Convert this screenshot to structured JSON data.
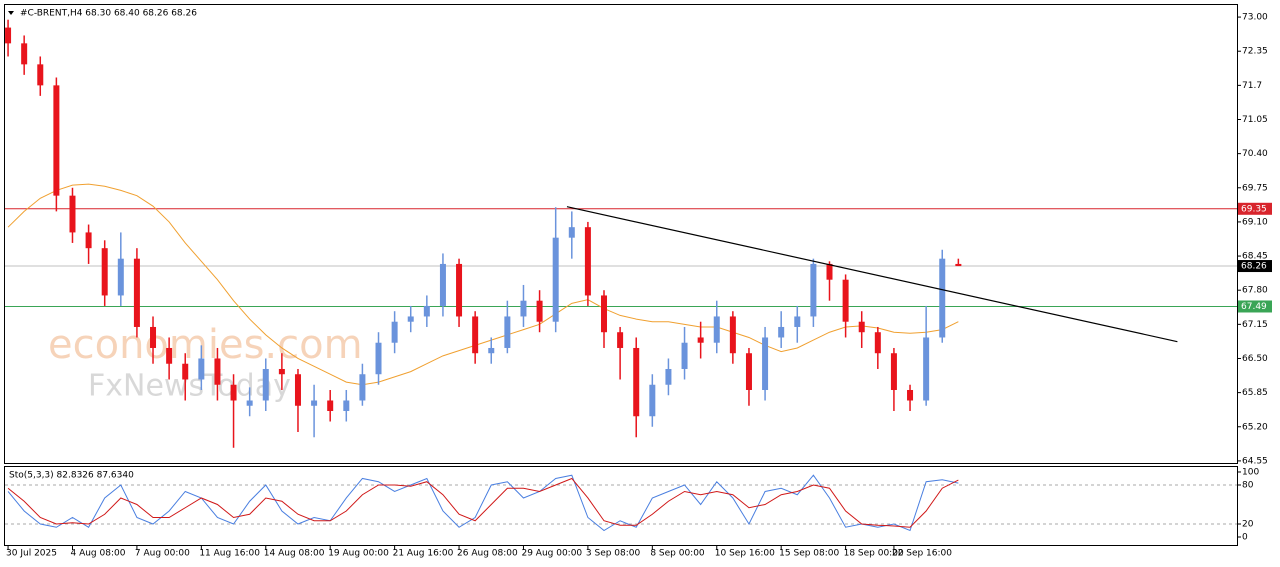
{
  "chart_data": [
    {
      "type": "candlestick",
      "title": "#C-BRENT,H4  68.30 68.40 68.26 68.26",
      "watermark": [
        "economies.com",
        "FxNewsToday"
      ],
      "categories": [
        "30 Jul 2025",
        null,
        null,
        null,
        "4 Aug 08:00",
        null,
        null,
        null,
        "7 Aug 00:00",
        null,
        null,
        null,
        "11 Aug 16:00",
        null,
        null,
        null,
        "14 Aug 08:00",
        null,
        null,
        null,
        "19 Aug 00:00",
        null,
        null,
        null,
        "21 Aug 16:00",
        null,
        null,
        null,
        "26 Aug 08:00",
        null,
        null,
        null,
        "29 Aug 00:00",
        null,
        null,
        null,
        "3 Sep 08:00",
        null,
        null,
        null,
        "8 Sep 00:00",
        null,
        null,
        null,
        "10 Sep 16:00",
        null,
        null,
        null,
        "15 Sep 08:00",
        null,
        null,
        null,
        "18 Sep 00:00",
        null,
        null,
        "22 Sep 16:00",
        null,
        null,
        null,
        null
      ],
      "xlim": [
        -0.19,
        76.3
      ],
      "open": [
        72.8,
        72.5,
        72.1,
        71.7,
        69.6,
        68.9,
        68.6,
        67.7,
        68.4,
        67.1,
        66.7,
        66.4,
        66.1,
        66.5,
        66.0,
        65.6,
        65.7,
        66.3,
        66.2,
        65.6,
        65.7,
        65.5,
        65.7,
        66.2,
        66.8,
        67.2,
        67.3,
        67.5,
        68.3,
        67.3,
        66.6,
        66.7,
        67.3,
        67.6,
        67.2,
        68.8,
        69.0,
        67.7,
        67.0,
        66.7,
        65.4,
        66.0,
        66.3,
        66.9,
        66.8,
        67.3,
        66.6,
        65.9,
        66.9,
        67.1,
        67.3,
        68.3,
        68.0,
        67.2,
        67.0,
        66.6,
        65.9,
        65.7,
        66.9,
        68.3
      ],
      "high": [
        72.95,
        72.65,
        72.25,
        71.85,
        69.75,
        69.05,
        68.75,
        68.9,
        68.6,
        67.3,
        66.9,
        66.6,
        66.75,
        66.7,
        66.2,
        65.95,
        66.5,
        66.6,
        66.3,
        66.0,
        65.9,
        65.9,
        66.4,
        67.0,
        67.4,
        67.5,
        67.7,
        68.5,
        68.4,
        67.4,
        66.9,
        67.6,
        67.9,
        67.8,
        69.38,
        69.3,
        69.1,
        67.8,
        67.1,
        66.9,
        66.2,
        66.5,
        67.1,
        67.2,
        67.6,
        67.4,
        66.7,
        67.1,
        67.4,
        67.5,
        68.4,
        68.35,
        68.1,
        67.4,
        67.1,
        66.7,
        66.0,
        67.5,
        68.57,
        68.4
      ],
      "low": [
        72.25,
        71.9,
        71.5,
        69.3,
        68.7,
        68.3,
        67.5,
        67.5,
        66.9,
        66.4,
        66.1,
        65.7,
        65.9,
        65.7,
        64.8,
        65.4,
        65.5,
        65.9,
        65.1,
        65.0,
        65.3,
        65.3,
        65.6,
        66.0,
        66.6,
        67.0,
        67.1,
        67.3,
        67.1,
        66.4,
        66.4,
        66.6,
        67.1,
        67.0,
        67.0,
        68.4,
        67.5,
        66.7,
        66.1,
        65.0,
        65.2,
        65.8,
        66.1,
        66.5,
        66.6,
        66.4,
        65.6,
        65.7,
        66.7,
        66.8,
        67.1,
        67.6,
        66.9,
        66.7,
        66.3,
        65.5,
        65.5,
        65.6,
        66.8,
        68.26
      ],
      "close": [
        72.5,
        72.1,
        71.7,
        69.6,
        68.9,
        68.6,
        67.7,
        68.4,
        67.1,
        66.7,
        66.4,
        66.1,
        66.5,
        66.0,
        65.7,
        65.7,
        66.3,
        66.2,
        65.6,
        65.7,
        65.5,
        65.7,
        66.2,
        66.8,
        67.2,
        67.3,
        67.5,
        68.3,
        67.3,
        66.6,
        66.7,
        67.3,
        67.6,
        67.2,
        68.8,
        69.0,
        67.7,
        67.0,
        66.7,
        65.4,
        66.0,
        66.3,
        66.8,
        66.8,
        67.3,
        66.6,
        65.9,
        66.9,
        67.1,
        67.3,
        68.3,
        68.0,
        67.2,
        67.0,
        66.6,
        65.9,
        65.7,
        66.9,
        68.4,
        68.26
      ],
      "up_color": "#6a93dc",
      "down_color": "#e8141c",
      "moving_average": {
        "color": "#f0a030",
        "values": [
          69.0,
          69.3,
          69.55,
          69.7,
          69.8,
          69.82,
          69.78,
          69.7,
          69.6,
          69.4,
          69.1,
          68.7,
          68.35,
          68.0,
          67.6,
          67.25,
          66.95,
          66.7,
          66.5,
          66.35,
          66.2,
          66.05,
          66.0,
          66.05,
          66.15,
          66.25,
          66.4,
          66.55,
          66.65,
          66.75,
          66.85,
          66.95,
          67.05,
          67.15,
          67.35,
          67.55,
          67.62,
          67.45,
          67.32,
          67.25,
          67.2,
          67.2,
          67.15,
          67.1,
          67.1,
          67.0,
          66.9,
          66.75,
          66.63,
          66.7,
          66.85,
          67.0,
          67.1,
          67.12,
          67.08,
          67.0,
          66.98,
          67.0,
          67.05,
          67.2
        ]
      },
      "trendline": {
        "color": "#000000",
        "x": [
          34.7,
          72.6
        ],
        "values": [
          69.39,
          66.82
        ]
      },
      "levels": [
        {
          "value": 69.35,
          "color": "#d8242c",
          "label_color": "#d8242c"
        },
        {
          "value": 68.26,
          "color": "#c0c0c0",
          "label_color": "#000000"
        },
        {
          "value": 67.49,
          "color": "#3aa556",
          "label_color": "#3aa556"
        }
      ],
      "ylim": [
        64.51,
        73.23
      ],
      "yticks": [
        {
          "value": 73.0,
          "label": "73.00"
        },
        72.35,
        71.7,
        71.05,
        {
          "value": 70.4,
          "label": "70.40"
        },
        69.75,
        {
          "value": 69.1,
          "label": "69.10"
        },
        68.45,
        {
          "value": 67.8,
          "label": "67.80"
        },
        67.15,
        {
          "value": 66.5,
          "label": "66.50"
        },
        65.85,
        {
          "value": 65.2,
          "label": "65.20"
        },
        64.55
      ]
    },
    {
      "type": "line",
      "title": "Sto(5,3,3) 82.8326 87.6340",
      "ylim": [
        -12.3,
        109.2
      ],
      "yticks": [
        100,
        80,
        20,
        0
      ],
      "levels": [
        80,
        20
      ],
      "series": [
        {
          "color": "#4a7fe0",
          "values": [
            70,
            40,
            20,
            15,
            30,
            15,
            60,
            80,
            30,
            20,
            40,
            70,
            60,
            30,
            20,
            55,
            80,
            40,
            20,
            30,
            25,
            60,
            90,
            85,
            70,
            80,
            90,
            40,
            15,
            30,
            80,
            85,
            60,
            70,
            90,
            95,
            30,
            10,
            25,
            15,
            60,
            70,
            80,
            50,
            85,
            60,
            20,
            70,
            75,
            65,
            95,
            60,
            15,
            20,
            15,
            20,
            10,
            85,
            88,
            82.83
          ]
        },
        {
          "color": "#d01818",
          "values": [
            75,
            55,
            30,
            20,
            22,
            20,
            35,
            60,
            50,
            30,
            30,
            45,
            60,
            50,
            30,
            35,
            60,
            55,
            35,
            25,
            25,
            40,
            65,
            80,
            80,
            78,
            85,
            65,
            35,
            25,
            50,
            75,
            75,
            70,
            80,
            90,
            60,
            25,
            18,
            18,
            35,
            55,
            70,
            65,
            70,
            65,
            45,
            50,
            65,
            70,
            80,
            75,
            40,
            20,
            18,
            17,
            15,
            40,
            75,
            87.63
          ]
        }
      ]
    }
  ]
}
